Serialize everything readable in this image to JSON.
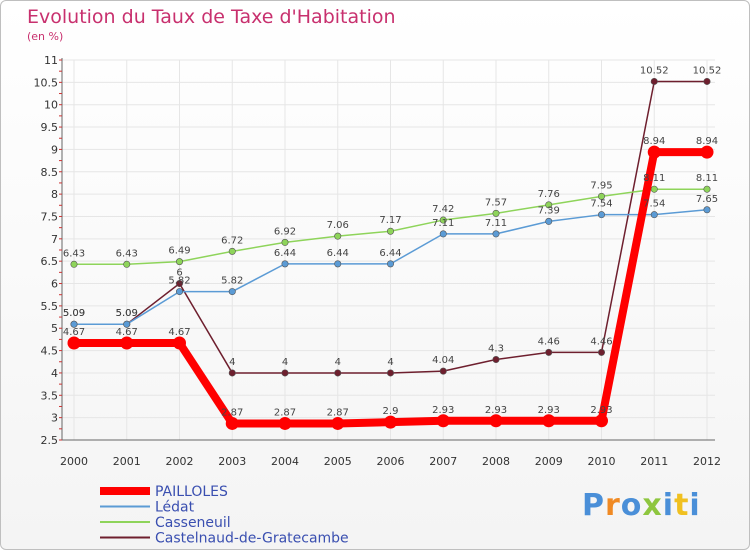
{
  "chart_data": {
    "type": "line",
    "title": "Evolution du Taux de Taxe d'Habitation",
    "subtitle": "(en %)",
    "x": [
      "2000",
      "2001",
      "2002",
      "2003",
      "2004",
      "2005",
      "2006",
      "2007",
      "2008",
      "2009",
      "2010",
      "2011",
      "2012"
    ],
    "yticks": [
      "2.5",
      "3",
      "3.5",
      "4",
      "4.5",
      "5",
      "5.5",
      "6",
      "6.5",
      "7",
      "7.5",
      "8",
      "8.5",
      "9",
      "9.5",
      "10",
      "10.5",
      "11"
    ],
    "ylim": [
      2.5,
      11
    ],
    "series": [
      {
        "name": "Castelnaud-de-Gratecambe",
        "color": "#6e1f2e",
        "values": [
          5.09,
          5.09,
          6.0,
          4.0,
          4.0,
          4.0,
          4.0,
          4.04,
          4.3,
          4.46,
          4.46,
          10.52,
          10.52
        ],
        "labels": [
          "5.09",
          "5.09",
          "6",
          "4",
          "4",
          "4",
          "4",
          "4.04",
          "4.3",
          "4.46",
          "4.46",
          "10.52",
          "10.52"
        ]
      },
      {
        "name": "Lédat",
        "color": "#5b9bd5",
        "values": [
          5.09,
          5.09,
          5.82,
          5.82,
          6.44,
          6.44,
          6.44,
          7.11,
          7.11,
          7.39,
          7.54,
          7.54,
          7.65
        ],
        "labels": [
          "5.09",
          "5.09",
          "5.82",
          "5.82",
          "6.44",
          "6.44",
          "6.44",
          "7.11",
          "7.11",
          "7.39",
          "7.54",
          "7.54",
          "7.65"
        ]
      },
      {
        "name": "Casseneuil",
        "color": "#8ed45a",
        "values": [
          6.43,
          6.43,
          6.49,
          6.72,
          6.92,
          7.06,
          7.17,
          7.42,
          7.57,
          7.76,
          7.95,
          8.11,
          8.11
        ],
        "labels": [
          "6.43",
          "6.43",
          "6.49",
          "6.72",
          "6.92",
          "7.06",
          "7.17",
          "7.42",
          "7.57",
          "7.76",
          "7.95",
          "8.11",
          "8.11"
        ]
      },
      {
        "name": "PAILLOLES",
        "color": "#ff0000",
        "values": [
          4.67,
          4.67,
          4.67,
          2.87,
          2.87,
          2.87,
          2.9,
          2.93,
          2.93,
          2.93,
          2.93,
          8.94,
          8.94
        ],
        "labels": [
          "4.67",
          "4.67",
          "4.67",
          "2.87",
          "2.87",
          "2.87",
          "2.9",
          "2.93",
          "2.93",
          "2.93",
          "2.93",
          "8.94",
          "8.94"
        ]
      }
    ],
    "legend": [
      "PAILLOLES",
      "Lédat",
      "Casseneuil",
      "Castelnaud-de-Gratecambe"
    ],
    "legend_colors": [
      "#ff0000",
      "#5b9bd5",
      "#8ed45a",
      "#6e1f2e"
    ],
    "legend_position": "bottom-left"
  },
  "brand": {
    "logo_letters": [
      "P",
      "r",
      "o",
      "x",
      "i",
      "t",
      "i"
    ],
    "logo_colors": [
      "#4a8fd8",
      "#f08a24",
      "#4a8fd8",
      "#8ec63f",
      "#4a8fd8",
      "#f0c020",
      "#4a8fd8"
    ]
  }
}
